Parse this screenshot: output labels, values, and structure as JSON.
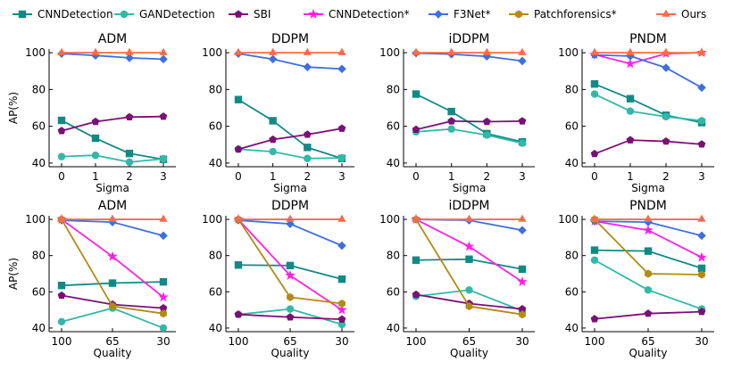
{
  "legend": [
    {
      "name": "CNNDetection",
      "color": "#118a86",
      "marker": "square"
    },
    {
      "name": "GANDetection",
      "color": "#32b8a8",
      "marker": "circle"
    },
    {
      "name": "SBI",
      "color": "#7a1075",
      "marker": "pentagon"
    },
    {
      "name": "CNNDetection*",
      "color": "#ff1ee8",
      "marker": "star"
    },
    {
      "name": "F3Net*",
      "color": "#3e6fdc",
      "marker": "diamond"
    },
    {
      "name": "Patchforensics*",
      "color": "#b38a14",
      "marker": "hexagon"
    },
    {
      "name": "Ours",
      "color": "#f76b4a",
      "marker": "triangle"
    }
  ],
  "chart_data": [
    {
      "type": "line",
      "title": "ADM",
      "xlabel": "Sigma",
      "ylabel": "AP(%)",
      "categories": [
        "0",
        "1",
        "2",
        "3"
      ],
      "ylim": [
        38,
        102
      ],
      "yticks": [
        40,
        60,
        80,
        100
      ],
      "series": [
        {
          "name": "CNNDetection",
          "values": [
            63.2,
            53.5,
            45.2,
            42
          ]
        },
        {
          "name": "GANDetection",
          "values": [
            43.5,
            44.2,
            40.5,
            42.3
          ]
        },
        {
          "name": "SBI",
          "values": [
            57.5,
            62.5,
            65,
            65.3
          ]
        },
        {
          "name": "F3Net*",
          "values": [
            99.5,
            98.5,
            97.2,
            96.5
          ]
        },
        {
          "name": "Ours",
          "values": [
            100,
            100,
            100,
            100
          ]
        }
      ]
    },
    {
      "type": "line",
      "title": "DDPM",
      "xlabel": "Sigma",
      "ylabel": "",
      "categories": [
        "0",
        "1",
        "2",
        "3"
      ],
      "ylim": [
        38,
        102
      ],
      "yticks": [
        40,
        60,
        80,
        100
      ],
      "series": [
        {
          "name": "CNNDetection",
          "values": [
            74.5,
            63,
            48.5,
            42.5
          ]
        },
        {
          "name": "GANDetection",
          "values": [
            47.5,
            46.2,
            42.5,
            42.8
          ]
        },
        {
          "name": "SBI",
          "values": [
            47.5,
            52.8,
            55.5,
            58.8
          ]
        },
        {
          "name": "F3Net*",
          "values": [
            99.5,
            96.5,
            92.2,
            91.2
          ]
        },
        {
          "name": "Ours",
          "values": [
            100,
            100,
            100,
            100
          ]
        }
      ]
    },
    {
      "type": "line",
      "title": "iDDPM",
      "xlabel": "Sigma",
      "ylabel": "",
      "categories": [
        "0",
        "1",
        "2",
        "3"
      ],
      "ylim": [
        38,
        102
      ],
      "yticks": [
        40,
        60,
        80,
        100
      ],
      "series": [
        {
          "name": "CNNDetection",
          "values": [
            77.5,
            68,
            56,
            51.5
          ]
        },
        {
          "name": "GANDetection",
          "values": [
            57,
            58.5,
            55.2,
            50.8
          ]
        },
        {
          "name": "SBI",
          "values": [
            58.2,
            62.8,
            62.5,
            62.8
          ]
        },
        {
          "name": "F3Net*",
          "values": [
            99.8,
            99.2,
            98,
            95.5
          ]
        },
        {
          "name": "Ours",
          "values": [
            100,
            100,
            100,
            100
          ]
        }
      ]
    },
    {
      "type": "line",
      "title": "PNDM",
      "xlabel": "Sigma",
      "ylabel": "",
      "categories": [
        "0",
        "1",
        "2",
        "3"
      ],
      "ylim": [
        38,
        102
      ],
      "yticks": [
        40,
        60,
        80,
        100
      ],
      "series": [
        {
          "name": "CNNDetection",
          "values": [
            83,
            75,
            66,
            62
          ]
        },
        {
          "name": "GANDetection",
          "values": [
            77.5,
            68.2,
            65.2,
            63
          ]
        },
        {
          "name": "SBI",
          "values": [
            45,
            52.5,
            51.8,
            50.2
          ]
        },
        {
          "name": "CNNDetection*",
          "values": [
            99,
            94,
            99.5,
            100
          ]
        },
        {
          "name": "F3Net*",
          "values": [
            98.8,
            98.2,
            91.8,
            81
          ]
        },
        {
          "name": "Ours",
          "values": [
            100,
            100,
            100,
            100
          ]
        }
      ]
    },
    {
      "type": "line",
      "title": "ADM",
      "xlabel": "Quality",
      "ylabel": "AP(%)",
      "categories": [
        "100",
        "65",
        "30"
      ],
      "ylim": [
        38,
        102
      ],
      "yticks": [
        40,
        60,
        80,
        100
      ],
      "series": [
        {
          "name": "CNNDetection",
          "values": [
            63.5,
            64.8,
            65.5
          ]
        },
        {
          "name": "GANDetection",
          "values": [
            43.5,
            51,
            40
          ]
        },
        {
          "name": "SBI",
          "values": [
            58,
            53,
            51
          ]
        },
        {
          "name": "CNNDetection*",
          "values": [
            100,
            79.5,
            57
          ]
        },
        {
          "name": "F3Net*",
          "values": [
            99.5,
            98.5,
            91
          ]
        },
        {
          "name": "Patchforensics*",
          "values": [
            100,
            52,
            48
          ]
        },
        {
          "name": "Ours",
          "values": [
            100,
            100,
            100
          ]
        }
      ]
    },
    {
      "type": "line",
      "title": "DDPM",
      "xlabel": "Quality",
      "ylabel": "",
      "categories": [
        "100",
        "65",
        "30"
      ],
      "ylim": [
        38,
        102
      ],
      "yticks": [
        40,
        60,
        80,
        100
      ],
      "series": [
        {
          "name": "CNNDetection",
          "values": [
            74.8,
            74.5,
            67
          ]
        },
        {
          "name": "GANDetection",
          "values": [
            47.5,
            50.5,
            42
          ]
        },
        {
          "name": "SBI",
          "values": [
            47.5,
            46,
            44.8
          ]
        },
        {
          "name": "CNNDetection*",
          "values": [
            100,
            69,
            50
          ]
        },
        {
          "name": "F3Net*",
          "values": [
            99.5,
            97.5,
            85.5
          ]
        },
        {
          "name": "Patchforensics*",
          "values": [
            100,
            57,
            53.5
          ]
        },
        {
          "name": "Ours",
          "values": [
            100,
            100,
            100
          ]
        }
      ]
    },
    {
      "type": "line",
      "title": "iDDPM",
      "xlabel": "Quality",
      "ylabel": "",
      "categories": [
        "100",
        "65",
        "30"
      ],
      "ylim": [
        38,
        102
      ],
      "yticks": [
        40,
        60,
        80,
        100
      ],
      "series": [
        {
          "name": "CNNDetection",
          "values": [
            77.5,
            78,
            72.5
          ]
        },
        {
          "name": "GANDetection",
          "values": [
            57.5,
            61,
            49.5
          ]
        },
        {
          "name": "SBI",
          "values": [
            58.5,
            53.5,
            50.5
          ]
        },
        {
          "name": "CNNDetection*",
          "values": [
            100,
            85,
            65.5
          ]
        },
        {
          "name": "F3Net*",
          "values": [
            100,
            99.5,
            94
          ]
        },
        {
          "name": "Patchforensics*",
          "values": [
            100,
            52,
            47.5
          ]
        },
        {
          "name": "Ours",
          "values": [
            100,
            100,
            100
          ]
        }
      ]
    },
    {
      "type": "line",
      "title": "PNDM",
      "xlabel": "Quality",
      "ylabel": "",
      "categories": [
        "100",
        "65",
        "30"
      ],
      "ylim": [
        38,
        102
      ],
      "yticks": [
        40,
        60,
        80,
        100
      ],
      "series": [
        {
          "name": "CNNDetection",
          "values": [
            83,
            82.5,
            73
          ]
        },
        {
          "name": "GANDetection",
          "values": [
            77.5,
            61,
            50.5
          ]
        },
        {
          "name": "SBI",
          "values": [
            45,
            48,
            49
          ]
        },
        {
          "name": "CNNDetection*",
          "values": [
            99,
            94,
            79
          ]
        },
        {
          "name": "F3Net*",
          "values": [
            99,
            98.5,
            91
          ]
        },
        {
          "name": "Patchforensics*",
          "values": [
            100,
            70,
            69.5
          ]
        },
        {
          "name": "Ours",
          "values": [
            100,
            100,
            100
          ]
        }
      ]
    }
  ]
}
